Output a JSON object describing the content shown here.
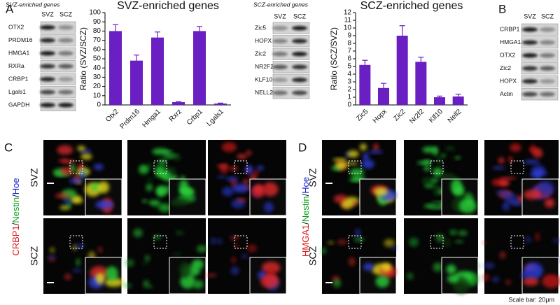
{
  "panel_labels": [
    "A",
    "B",
    "C",
    "D"
  ],
  "blots": [
    {
      "title": "SVZ-enriched genes",
      "lanes": [
        "SVZ",
        "SCZ"
      ],
      "rows": [
        "OTX2",
        "PRDM16",
        "HMGA1",
        "RXRa",
        "CRBP1",
        "Lgals1",
        "GAPDH"
      ]
    },
    {
      "title": "SCZ-enriched genes",
      "lanes": [
        "SVZ",
        "SCZ"
      ],
      "rows": [
        "Zic5",
        "HOPX",
        "Zic2",
        "NR2F2",
        "KLF10",
        "NELL2"
      ]
    },
    {
      "lanes": [
        "SVZ",
        "SCZ"
      ],
      "rows": [
        "CRBP1",
        "HMGA1",
        "OTX2",
        "Zic2",
        "HOPX",
        "Actin"
      ]
    }
  ],
  "chart_data": [
    {
      "type": "bar",
      "title": "SVZ-enriched genes",
      "y_label": "Ratio (SVZ/SCZ)",
      "categories": [
        "Otx2",
        "Prdm16",
        "Hmga1",
        "Rxrz",
        "Crbp1",
        "Lgals1"
      ],
      "values": [
        80,
        48,
        73,
        3,
        80,
        1.5
      ],
      "errors": [
        7,
        6,
        6,
        0.5,
        5,
        0.5
      ],
      "color": "#6a1fc2",
      "ylim": [
        0,
        100
      ],
      "yticks": [
        0,
        10,
        20,
        30,
        40,
        50,
        60,
        70,
        80,
        90,
        100
      ]
    },
    {
      "type": "bar",
      "title": "SCZ-enriched genes",
      "y_label": "Ratio (SCZ/SVZ)",
      "categories": [
        "Zic5",
        "Hopx",
        "Zic2",
        "Nr2f2",
        "Klf10",
        "Nell2"
      ],
      "values": [
        5.2,
        2.2,
        9,
        5.6,
        1.0,
        1.1
      ],
      "errors": [
        0.6,
        0.6,
        1.3,
        0.6,
        0.15,
        0.3
      ],
      "color": "#6a1fc2",
      "ylim": [
        0,
        12
      ],
      "yticks": [
        0,
        1,
        2,
        3,
        4,
        5,
        6,
        7,
        8,
        9,
        10,
        11,
        12
      ]
    }
  ],
  "microscopy": [
    {
      "stain_parts": [
        "CRBP1",
        "/",
        "Nestin",
        "/",
        "Hoe"
      ],
      "regions": [
        "SVZ",
        "SCZ"
      ]
    },
    {
      "stain_parts": [
        "HMGA1",
        "/",
        "Nestin",
        "/",
        "Hoe"
      ],
      "regions": [
        "SVZ",
        "SCZ"
      ]
    }
  ],
  "scale_bar": "Scale bar: 20μm"
}
